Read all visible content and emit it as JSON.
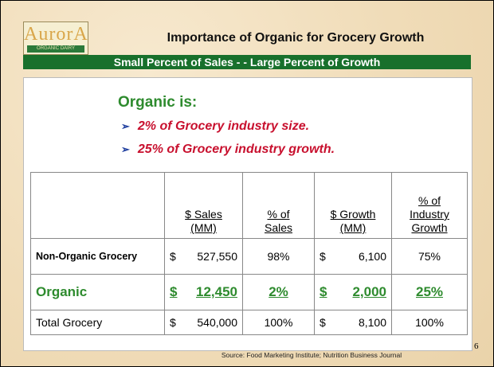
{
  "logo": {
    "name": "AurorA",
    "tagline": "ORGANIC DAIRY"
  },
  "title": "Importance of Organic for Grocery Growth",
  "banner": "Small Percent of Sales - - Large Percent of Growth",
  "intro": "Organic is:",
  "bullets": [
    "2% of Grocery industry size.",
    "25% of Grocery industry growth."
  ],
  "table": {
    "headers": [
      [],
      [
        "$ Sales",
        "(MM)"
      ],
      [
        "% of",
        "Sales"
      ],
      [
        "$ Growth",
        "(MM)"
      ],
      [
        "% of",
        "Industry",
        "Growth"
      ]
    ],
    "rows": [
      {
        "label": "Non-Organic Grocery",
        "cells": [
          [
            "$",
            "527,550"
          ],
          "98%",
          [
            "$",
            "6,100"
          ],
          "75%"
        ]
      },
      {
        "label": "Organic",
        "cells": [
          [
            "$",
            "12,450"
          ],
          "2%",
          [
            "$",
            "2,000"
          ],
          "25%"
        ]
      },
      {
        "label": "Total Grocery",
        "cells": [
          [
            "$",
            "540,000"
          ],
          "100%",
          [
            "$",
            "8,100"
          ],
          "100%"
        ]
      }
    ]
  },
  "source": "Source: Food Marketing Institute; Nutrition Business Journal",
  "page_number": "6"
}
